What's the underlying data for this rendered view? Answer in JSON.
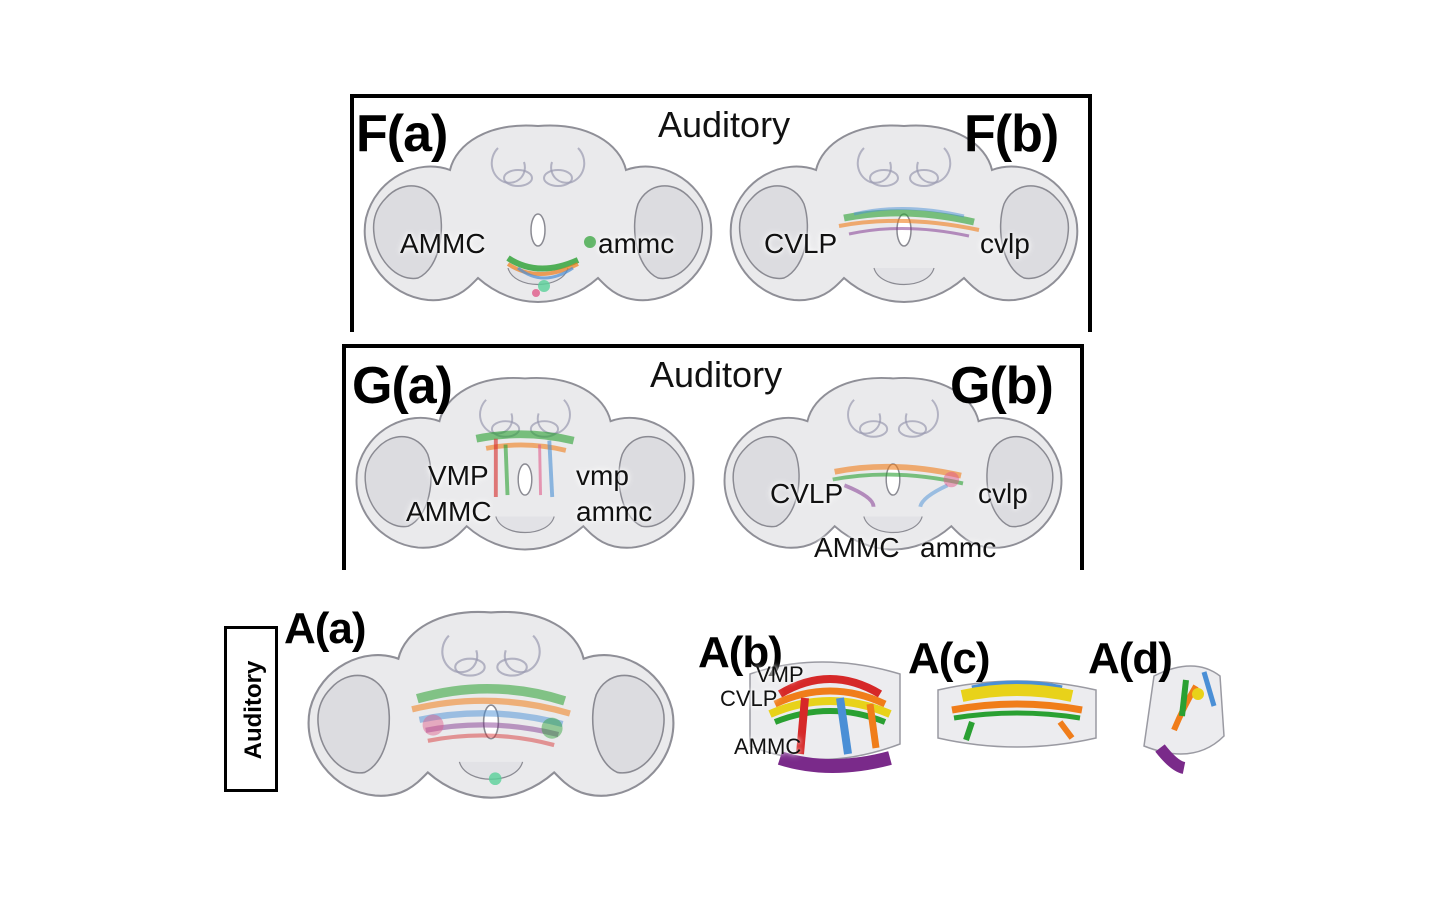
{
  "panel_f": {
    "title": "Auditory",
    "label_a": "F(a)",
    "label_b": "F(b)",
    "regions_a": [
      "AMMC",
      "ammc"
    ],
    "regions_b": [
      "CVLP",
      "cvlp"
    ]
  },
  "panel_g": {
    "title": "Auditory",
    "label_a": "G(a)",
    "label_b": "G(b)",
    "regions_a": [
      "VMP",
      "vmp",
      "AMMC",
      "ammc"
    ],
    "regions_b": [
      "CVLP",
      "cvlp",
      "AMMC",
      "ammc"
    ]
  },
  "panel_a": {
    "side_label": "Auditory",
    "label_a": "A(a)",
    "label_b": "A(b)",
    "label_c": "A(c)",
    "label_d": "A(d)",
    "regions_b": [
      "VMP",
      "CVLP",
      "AMMC"
    ]
  },
  "colors": {
    "brain_fill": "#e9e9ec",
    "brain_stroke": "#8a8a92",
    "tract_red": "#d62828",
    "tract_orange": "#f07d1a",
    "tract_yellow": "#e8d21a",
    "tract_green": "#2aa032",
    "tract_blue": "#4a8fd6",
    "tract_purple": "#7a2a8a"
  }
}
